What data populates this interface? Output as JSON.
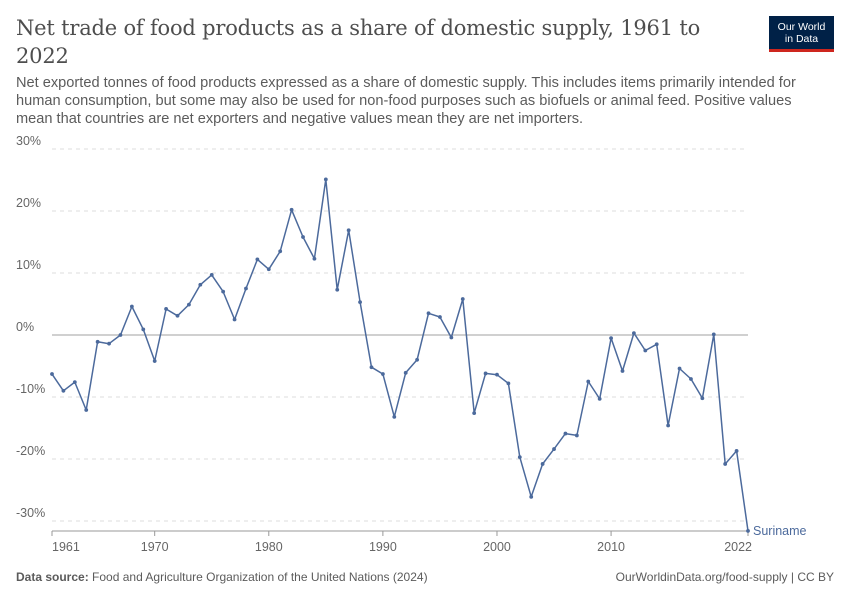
{
  "header": {
    "title": "Net trade of food products as a share of domestic supply, 1961 to 2022",
    "subtitle": "Net exported tonnes of food products expressed as a share of domestic supply. This includes items primarily intended for human consumption, but some may also be used for non-food purposes such as biofuels or animal feed. Positive values mean that countries are net exporters and negative values mean they are net importers."
  },
  "logo": {
    "line1": "Our World",
    "line2": "in Data"
  },
  "footer": {
    "source_label": "Data source:",
    "source_text": "Food and Agriculture Organization of the United Nations (2024)",
    "right_text": "OurWorldinData.org/food-supply | CC BY"
  },
  "colors": {
    "line": "#4c6a9c",
    "grid": "#dddddd",
    "zero": "#a1a1a1",
    "axis": "#999999"
  },
  "chart_data": {
    "type": "line",
    "title": "Net trade of food products as a share of domestic supply, 1961 to 2022",
    "xlabel": "",
    "ylabel": "",
    "xlim": [
      1961,
      2022
    ],
    "ylim": [
      -30,
      30
    ],
    "y_ticks": [
      30,
      20,
      10,
      0,
      -10,
      -20,
      -30
    ],
    "y_tick_labels": [
      "30%",
      "20%",
      "10%",
      "0%",
      "-10%",
      "-20%",
      "-30%"
    ],
    "x_ticks": [
      1961,
      1970,
      1980,
      1990,
      2000,
      2010,
      2022
    ],
    "x_tick_labels": [
      "1961",
      "1970",
      "1980",
      "1990",
      "2000",
      "2010",
      "2022"
    ],
    "grid": "horizontal dashed",
    "series": [
      {
        "name": "Suriname",
        "x": [
          1961,
          1962,
          1963,
          1964,
          1965,
          1966,
          1967,
          1968,
          1969,
          1970,
          1971,
          1972,
          1973,
          1974,
          1975,
          1976,
          1977,
          1978,
          1979,
          1980,
          1981,
          1982,
          1983,
          1984,
          1985,
          1986,
          1987,
          1988,
          1989,
          1990,
          1991,
          1992,
          1993,
          1994,
          1995,
          1996,
          1997,
          1998,
          1999,
          2000,
          2001,
          2002,
          2003,
          2004,
          2005,
          2006,
          2007,
          2008,
          2009,
          2010,
          2011,
          2012,
          2013,
          2014,
          2015,
          2016,
          2017,
          2018,
          2019,
          2020,
          2021,
          2022
        ],
        "values": [
          -6.3,
          -9.0,
          -7.6,
          -12.1,
          -1.1,
          -1.4,
          0.0,
          4.6,
          0.9,
          -4.2,
          4.2,
          3.1,
          4.9,
          8.1,
          9.7,
          7.0,
          2.5,
          7.5,
          12.2,
          10.6,
          13.5,
          20.2,
          15.8,
          12.3,
          25.1,
          7.3,
          16.9,
          5.3,
          -5.2,
          -6.3,
          -13.2,
          -6.1,
          -4.0,
          3.5,
          2.9,
          -0.4,
          5.8,
          -12.6,
          -6.2,
          -6.4,
          -7.8,
          -19.7,
          -26.1,
          -20.8,
          -18.4,
          -15.9,
          -16.2,
          -7.5,
          -10.3,
          -0.5,
          -5.8,
          0.3,
          -2.5,
          -1.5,
          -14.6,
          -5.4,
          -7.1,
          -10.2,
          0.1,
          -20.8,
          -18.7,
          -31.6
        ]
      }
    ]
  }
}
